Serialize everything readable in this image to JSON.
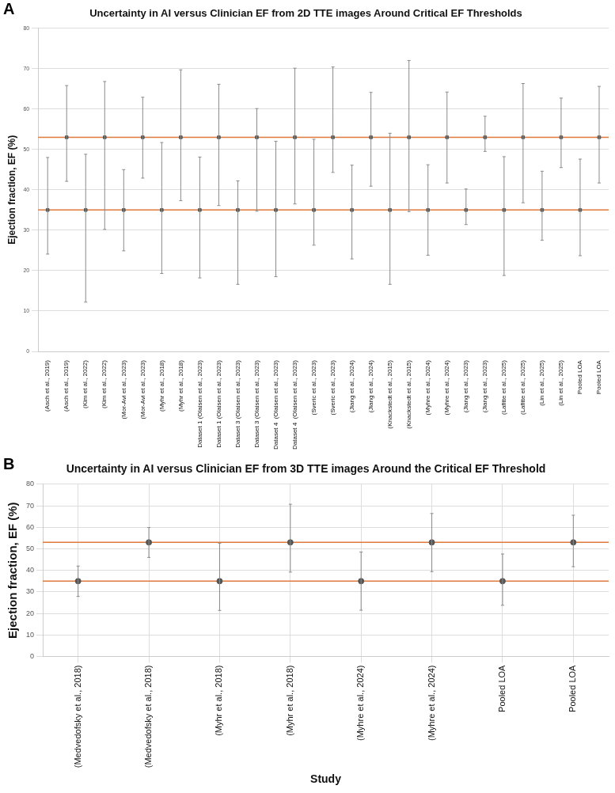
{
  "chart_data": [
    {
      "type": "scatter",
      "title": "Uncertainty in AI versus Clinician EF from 2D TTE images Around Critical EF Thresholds",
      "ylabel": "Ejection fraction, EF (%)",
      "annotations": [
        "A"
      ],
      "categories": [
        "(Asch et al., 2019)",
        "(Asch et al., 2019)",
        "(Kim et al., 2022)",
        "(Kim et al., 2022)",
        "(Mor-Avi et al., 2023)",
        "(Mor-Avi et al., 2023)",
        "(Myhr et al., 2018)",
        "(Myhr et al., 2018)",
        "Dataset 1 (Olaisen et al., 2023)",
        "Dataset 1 (Olaisen et al., 2023)",
        "Dataset 3 (Olaisen et al., 2023)",
        "Dataset 3 (Olaisen et al., 2023)",
        "Dataset 4  (Olaisen et al., 2023)",
        "Dataset 4  (Olaisen et al., 2023)",
        "(Sveric et al., 2023)",
        "(Sveric et al., 2023)",
        "(Jiang et al., 2024)",
        "(Jiang et al., 2024)",
        "(Knackstedt et al., 2015)",
        "(Knackstedt et al., 2015)",
        "(Myhre et al., 2024)",
        "(Myhre et al., 2024)",
        "(Jiang et al., 2023)",
        "(Jiang et al., 2023)",
        "(Lafitte et al., 2025)",
        "(Lafitte et al., 2025)",
        "(Lin et al., 2025)",
        "(Lin et al., 2025)",
        "Pooled LOA",
        "Pooled LOA"
      ],
      "values": [
        35,
        53,
        35,
        53,
        35,
        53,
        35,
        53,
        35,
        53,
        35,
        53,
        35,
        53,
        35,
        53,
        35,
        53,
        35,
        53,
        35,
        53,
        35,
        53,
        35,
        53,
        35,
        53,
        35,
        53
      ],
      "errors": [
        [
          24.1,
          48.0
        ],
        [
          42.1,
          65.8
        ],
        [
          12.2,
          48.8
        ],
        [
          30.2,
          66.8
        ],
        [
          24.9,
          45.0
        ],
        [
          42.9,
          62.9
        ],
        [
          19.3,
          51.7
        ],
        [
          37.3,
          69.7
        ],
        [
          18.2,
          48.1
        ],
        [
          36.1,
          66.1
        ],
        [
          16.6,
          42.2
        ],
        [
          34.7,
          60.1
        ],
        [
          18.5,
          52.0
        ],
        [
          36.5,
          70.1
        ],
        [
          26.3,
          52.5
        ],
        [
          44.3,
          70.4
        ],
        [
          22.9,
          46.1
        ],
        [
          40.9,
          64.1
        ],
        [
          16.6,
          54.0
        ],
        [
          34.6,
          72.0
        ],
        [
          23.8,
          46.2
        ],
        [
          41.7,
          64.2
        ],
        [
          31.4,
          40.2
        ],
        [
          49.5,
          58.2
        ],
        [
          18.8,
          48.2
        ],
        [
          36.8,
          66.3
        ],
        [
          27.5,
          44.6
        ],
        [
          45.5,
          62.7
        ],
        [
          23.7,
          47.6
        ],
        [
          41.7,
          65.6
        ]
      ],
      "color": "#555555",
      "marker": "square",
      "ylim": [
        0,
        80
      ],
      "yticks": [
        0,
        10,
        20,
        30,
        40,
        50,
        60,
        70,
        80
      ],
      "grid": "y",
      "ref_lines": [
        {
          "axis": "y",
          "value": 53,
          "color": "#e07a3c"
        },
        {
          "axis": "y",
          "value": 35,
          "color": "#e07a3c"
        }
      ]
    },
    {
      "type": "scatter",
      "title": "Uncertainty in AI versus Clinician EF from 3D TTE images Around the Critical EF Threshold",
      "xlabel": "Study",
      "ylabel": "Ejection fraction, EF (%)",
      "annotations": [
        "B"
      ],
      "categories": [
        "(Medvedofsky et al., 2018)",
        "(Medvedofsky et al., 2018)",
        "(Myhr et al., 2018)",
        "(Myhr et al., 2018)",
        "(Myhre et al., 2024)",
        "(Myhre et al., 2024)",
        "Pooled LOA",
        "Pooled LOA"
      ],
      "values": [
        35,
        53,
        35,
        53,
        35,
        53,
        35,
        53
      ],
      "errors": [
        [
          27.9,
          42.0
        ],
        [
          46.0,
          59.9
        ],
        [
          21.4,
          52.6
        ],
        [
          39.2,
          70.7
        ],
        [
          21.5,
          48.5
        ],
        [
          39.4,
          66.4
        ],
        [
          23.8,
          47.6
        ],
        [
          41.7,
          65.6
        ]
      ],
      "color": "#555555",
      "marker": "circle",
      "ylim": [
        0,
        80
      ],
      "yticks": [
        0,
        10,
        20,
        30,
        40,
        50,
        60,
        70,
        80
      ],
      "grid": true,
      "ref_lines": [
        {
          "axis": "y",
          "value": 53,
          "color": "#e07a3c"
        },
        {
          "axis": "y",
          "value": 35,
          "color": "#e07a3c"
        }
      ]
    }
  ]
}
